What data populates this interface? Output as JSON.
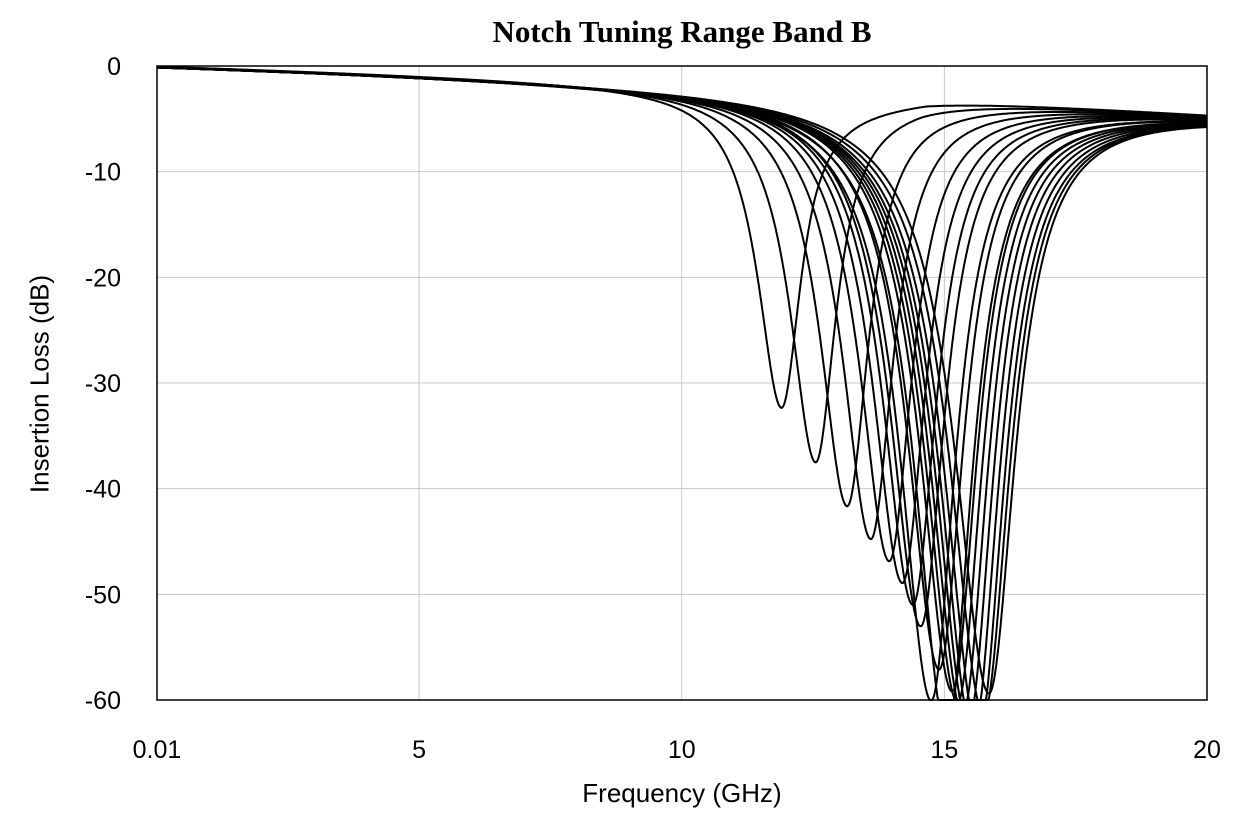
{
  "chart_data": {
    "type": "line",
    "title": "Notch Tuning Range Band B",
    "xlabel": "Frequency (GHz)",
    "ylabel": "Insertion Loss (dB)",
    "xlim": [
      0.01,
      20
    ],
    "ylim": [
      -60,
      0
    ],
    "x_ticks": [
      0.01,
      5,
      10,
      15,
      20
    ],
    "x_tick_labels": [
      "0.01",
      "5",
      "10",
      "15",
      "20"
    ],
    "y_ticks": [
      0,
      -10,
      -20,
      -30,
      -40,
      -50,
      -60
    ],
    "y_tick_labels": [
      "0",
      "-10",
      "-20",
      "-30",
      "-40",
      "-50",
      "-60"
    ],
    "grid": true,
    "legend": "none",
    "line_color": "#000000",
    "grid_color": "#c8c8c8",
    "notches": [
      {
        "center_ghz": 11.9,
        "depth_db": -30
      },
      {
        "center_ghz": 12.55,
        "depth_db": -35
      },
      {
        "center_ghz": 13.15,
        "depth_db": -39
      },
      {
        "center_ghz": 13.6,
        "depth_db": -42
      },
      {
        "center_ghz": 13.95,
        "depth_db": -44
      },
      {
        "center_ghz": 14.2,
        "depth_db": -46
      },
      {
        "center_ghz": 14.4,
        "depth_db": -48
      },
      {
        "center_ghz": 14.55,
        "depth_db": -50
      },
      {
        "center_ghz": 14.75,
        "depth_db": -57
      },
      {
        "center_ghz": 14.9,
        "depth_db": -54
      },
      {
        "center_ghz": 15.05,
        "depth_db": -60
      },
      {
        "center_ghz": 15.15,
        "depth_db": -56
      },
      {
        "center_ghz": 15.25,
        "depth_db": -57
      },
      {
        "center_ghz": 15.35,
        "depth_db": -58
      },
      {
        "center_ghz": 15.45,
        "depth_db": -59
      },
      {
        "center_ghz": 15.55,
        "depth_db": -60
      },
      {
        "center_ghz": 15.65,
        "depth_db": -60
      },
      {
        "center_ghz": 15.75,
        "depth_db": -58
      },
      {
        "center_ghz": 15.85,
        "depth_db": -56
      }
    ]
  }
}
